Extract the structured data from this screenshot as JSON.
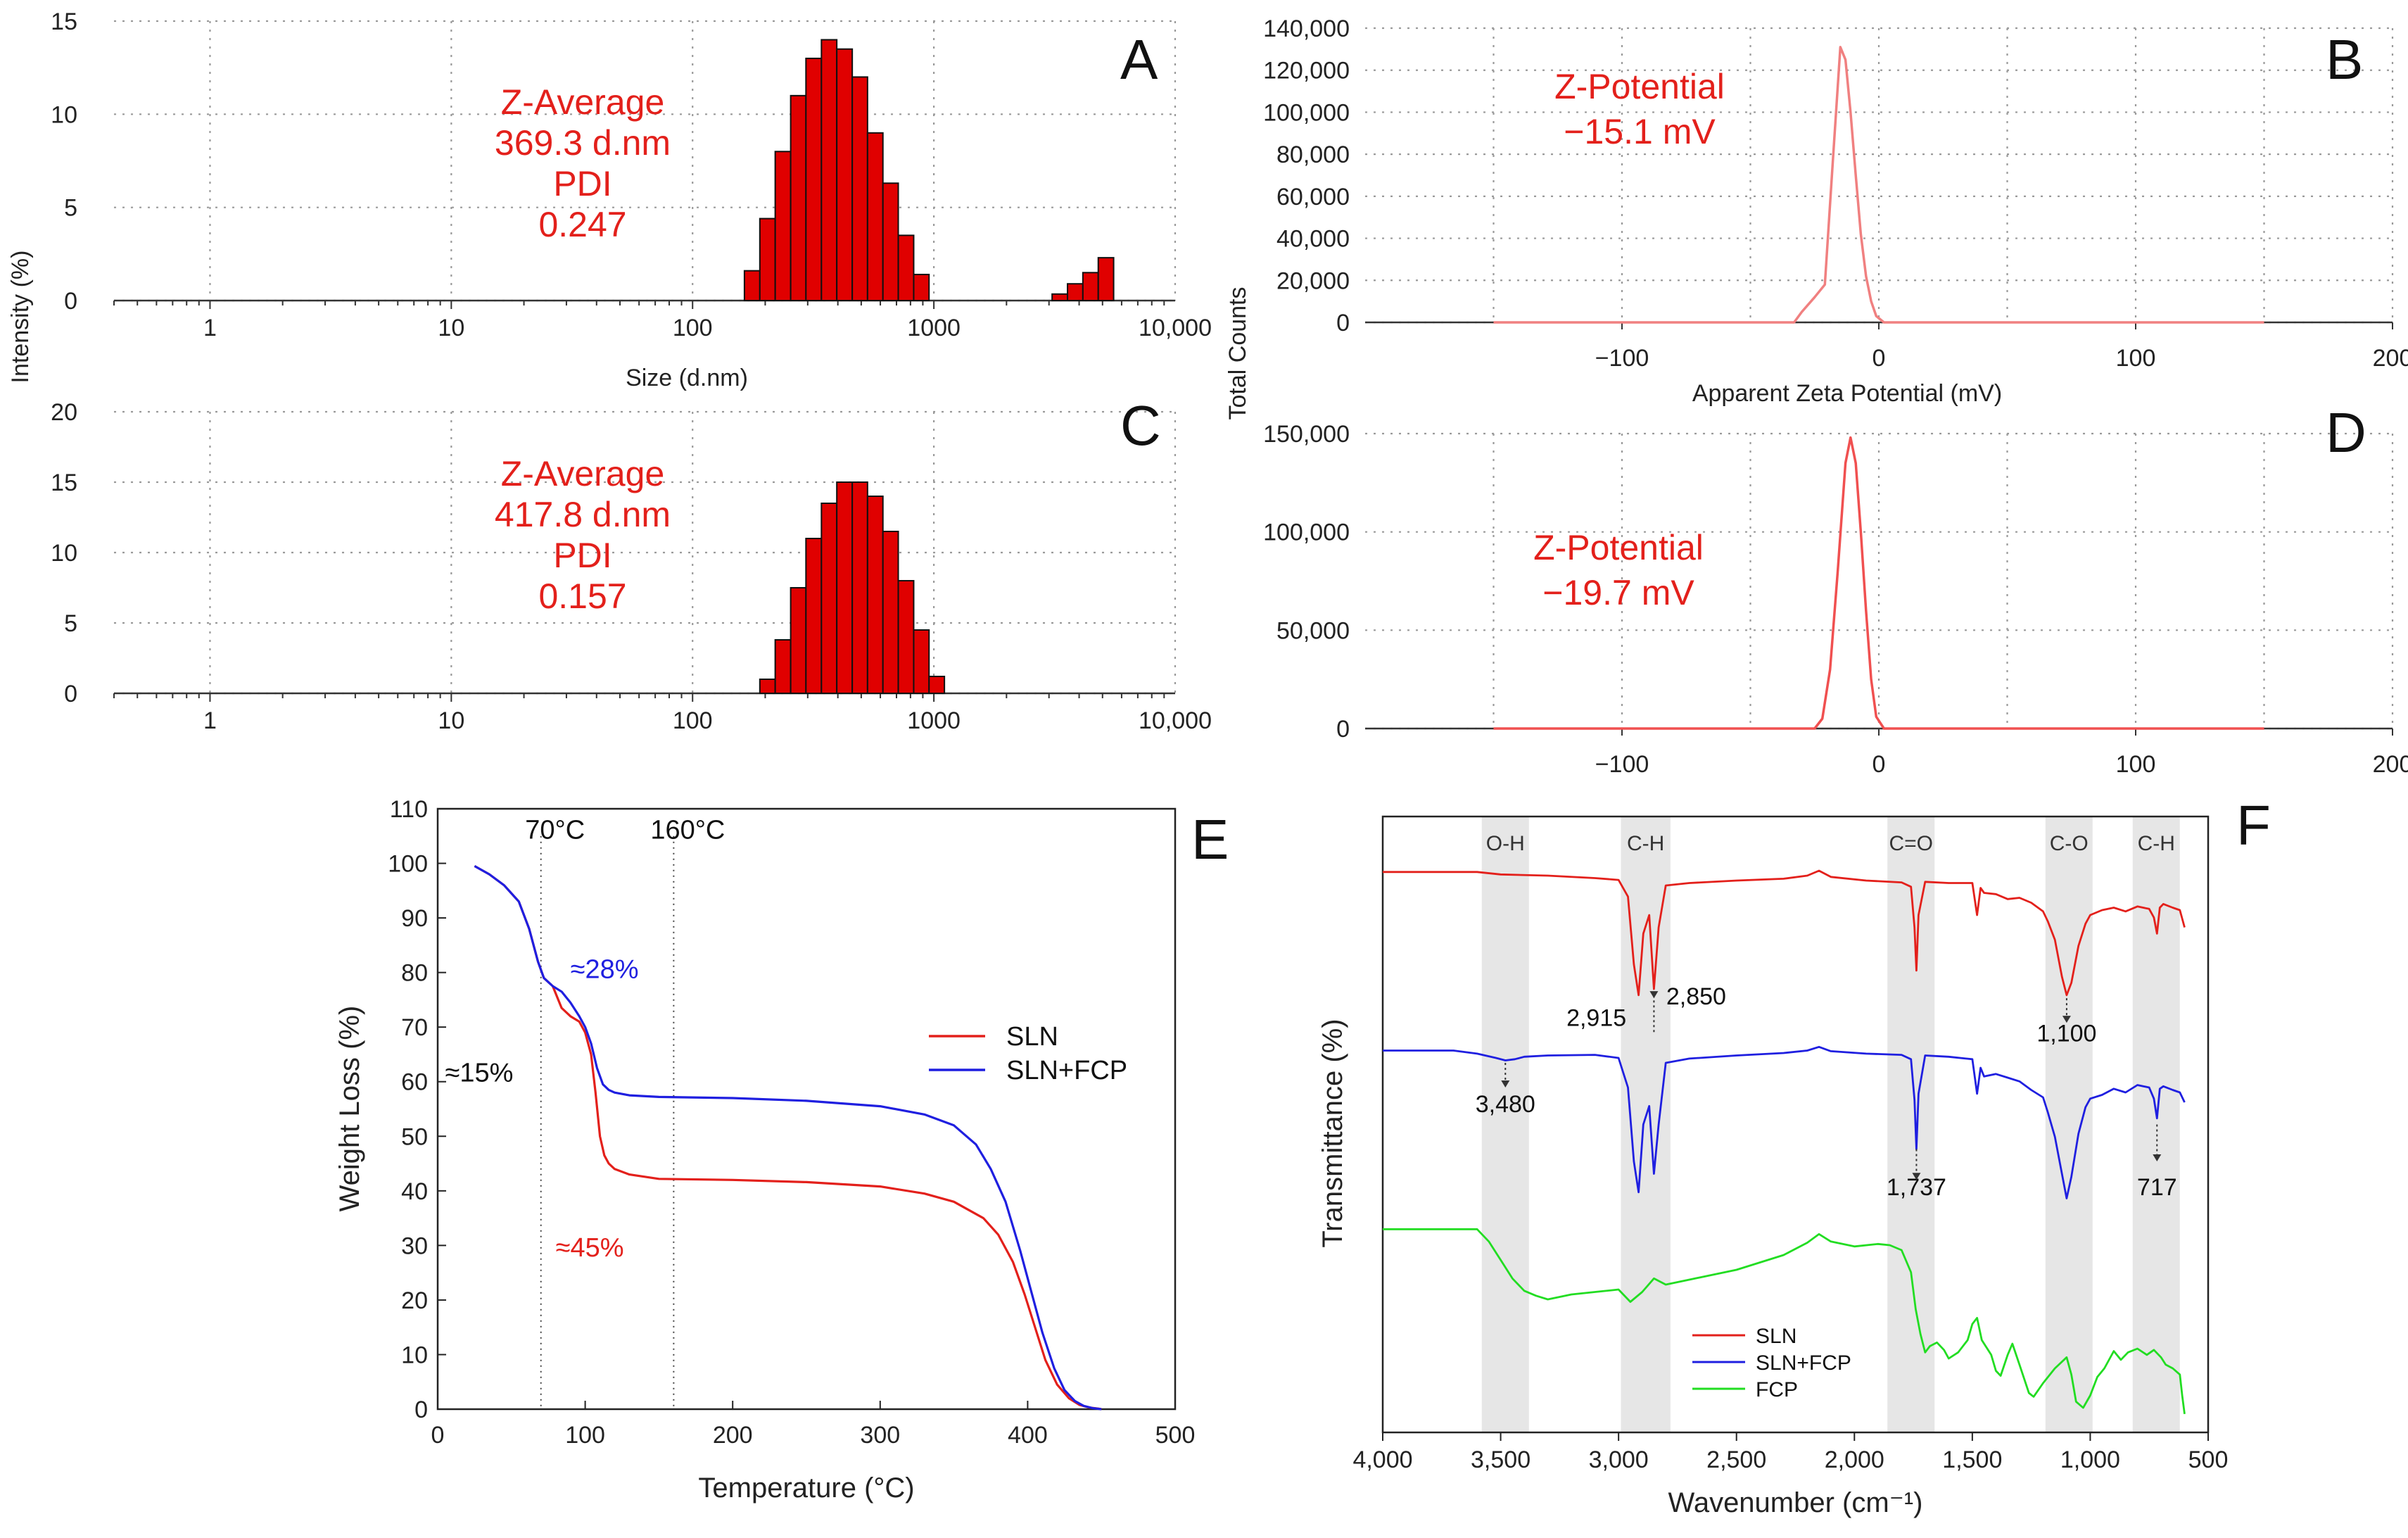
{
  "chart_data": [
    {
      "id": "A",
      "type": "bar",
      "panel_letter": "A",
      "xlabel": "Size (d.nm)",
      "ylabel": "Intensity (%)",
      "xscale": "log",
      "xlim": [
        0.4,
        10000
      ],
      "ylim": [
        0,
        15
      ],
      "xticks": [
        1,
        10,
        100,
        1000,
        10000
      ],
      "xtick_labels": [
        "1",
        "10",
        "100",
        "1000",
        "10,000"
      ],
      "yticks": [
        0,
        5,
        10,
        15
      ],
      "ytick_labels": [
        "0",
        "5",
        "10",
        "15"
      ],
      "grid": true,
      "bar_color": "#e00000",
      "annotation": [
        "Z-Average",
        "369.3 d.nm",
        "PDI",
        "0.247"
      ],
      "bins": [
        {
          "x": 164,
          "x_end": 190,
          "y": 1.6
        },
        {
          "x": 190,
          "x_end": 220,
          "y": 4.4
        },
        {
          "x": 220,
          "x_end": 255,
          "y": 8.0
        },
        {
          "x": 255,
          "x_end": 295,
          "y": 11.0
        },
        {
          "x": 295,
          "x_end": 342,
          "y": 13.0
        },
        {
          "x": 342,
          "x_end": 396,
          "y": 14.0
        },
        {
          "x": 396,
          "x_end": 459,
          "y": 13.5
        },
        {
          "x": 459,
          "x_end": 531,
          "y": 12.0
        },
        {
          "x": 531,
          "x_end": 615,
          "y": 9.0
        },
        {
          "x": 615,
          "x_end": 712,
          "y": 6.3
        },
        {
          "x": 712,
          "x_end": 825,
          "y": 3.5
        },
        {
          "x": 825,
          "x_end": 955,
          "y": 1.4
        },
        {
          "x": 3091,
          "x_end": 3580,
          "y": 0.35
        },
        {
          "x": 3580,
          "x_end": 4145,
          "y": 0.9
        },
        {
          "x": 4145,
          "x_end": 4801,
          "y": 1.5
        },
        {
          "x": 4801,
          "x_end": 5560,
          "y": 2.3
        }
      ]
    },
    {
      "id": "C",
      "type": "bar",
      "panel_letter": "C",
      "xlabel": "",
      "ylabel": "Intensity (%)",
      "xscale": "log",
      "xlim": [
        0.4,
        10000
      ],
      "ylim": [
        0,
        20
      ],
      "xticks": [
        1,
        10,
        100,
        1000,
        10000
      ],
      "xtick_labels": [
        "1",
        "10",
        "100",
        "1000",
        "10,000"
      ],
      "yticks": [
        0,
        5,
        10,
        15,
        20
      ],
      "ytick_labels": [
        "0",
        "5",
        "10",
        "15",
        "20"
      ],
      "grid": true,
      "bar_color": "#e00000",
      "annotation": [
        "Z-Average",
        "417.8 d.nm",
        "PDI",
        "0.157"
      ],
      "bins": [
        {
          "x": 190,
          "x_end": 220,
          "y": 1.0
        },
        {
          "x": 220,
          "x_end": 255,
          "y": 3.8
        },
        {
          "x": 255,
          "x_end": 295,
          "y": 7.5
        },
        {
          "x": 295,
          "x_end": 342,
          "y": 11.0
        },
        {
          "x": 342,
          "x_end": 396,
          "y": 13.5
        },
        {
          "x": 396,
          "x_end": 459,
          "y": 15.0
        },
        {
          "x": 459,
          "x_end": 531,
          "y": 15.0
        },
        {
          "x": 531,
          "x_end": 615,
          "y": 14.0
        },
        {
          "x": 615,
          "x_end": 712,
          "y": 11.5
        },
        {
          "x": 712,
          "x_end": 825,
          "y": 8.0
        },
        {
          "x": 825,
          "x_end": 955,
          "y": 4.5
        },
        {
          "x": 955,
          "x_end": 1106,
          "y": 1.2
        }
      ]
    },
    {
      "id": "B",
      "type": "line",
      "panel_letter": "B",
      "xlabel": "Apparent Zeta Potential (mV)",
      "ylabel": "Total Counts",
      "xlim": [
        -200,
        200
      ],
      "ylim": [
        0,
        140000
      ],
      "xticks": [
        -100,
        0,
        100,
        200
      ],
      "xtick_labels": [
        "−100",
        "0",
        "100",
        "200"
      ],
      "yticks": [
        0,
        20000,
        40000,
        60000,
        80000,
        100000,
        120000,
        140000
      ],
      "ytick_labels": [
        "0",
        "20,000",
        "40,000",
        "60,000",
        "80,000",
        "100,000",
        "120,000",
        "140,000"
      ],
      "grid": true,
      "line_color": "#f08080",
      "annotation": [
        "Z-Potential",
        "−15.1 mV"
      ],
      "x": [
        -150,
        -33,
        -30,
        -25,
        -21,
        -18,
        -15,
        -13,
        -11,
        -9,
        -7,
        -5,
        -3,
        -1,
        2,
        150
      ],
      "y": [
        0,
        0,
        5000,
        12000,
        18000,
        75000,
        131000,
        125000,
        100000,
        70000,
        42000,
        22000,
        10000,
        3000,
        0,
        0
      ]
    },
    {
      "id": "D",
      "type": "line",
      "panel_letter": "D",
      "xlabel": "",
      "ylabel": "Total Counts",
      "xlim": [
        -200,
        200
      ],
      "ylim": [
        0,
        150000
      ],
      "xticks": [
        -100,
        0,
        100,
        200
      ],
      "xtick_labels": [
        "−100",
        "0",
        "100",
        "200"
      ],
      "yticks": [
        0,
        50000,
        100000,
        150000
      ],
      "ytick_labels": [
        "0",
        "50,000",
        "100,000",
        "150,000"
      ],
      "grid": true,
      "line_color": "#f05050",
      "annotation": [
        "Z-Potential",
        "−19.7 mV"
      ],
      "x": [
        -150,
        -25,
        -22,
        -19,
        -16,
        -13,
        -11,
        -9,
        -7,
        -5,
        -3,
        -1,
        2,
        150
      ],
      "y": [
        0,
        0,
        5000,
        30000,
        80000,
        135000,
        148000,
        135000,
        100000,
        60000,
        25000,
        6000,
        0,
        0
      ]
    },
    {
      "id": "E",
      "type": "line",
      "panel_letter": "E",
      "xlabel": "Temperature (°C)",
      "ylabel": "Weight Loss (%)",
      "xlim": [
        0,
        500
      ],
      "ylim": [
        0,
        110
      ],
      "xticks": [
        0,
        100,
        200,
        300,
        400,
        500
      ],
      "xtick_labels": [
        "0",
        "100",
        "200",
        "300",
        "400",
        "500"
      ],
      "yticks": [
        0,
        10,
        20,
        30,
        40,
        50,
        60,
        70,
        80,
        90,
        100,
        110
      ],
      "ytick_labels": [
        "0",
        "10",
        "20",
        "30",
        "40",
        "50",
        "60",
        "70",
        "80",
        "90",
        "100",
        "110"
      ],
      "vlines": [
        {
          "x": 70,
          "label": "70°C"
        },
        {
          "x": 160,
          "label": "160°C"
        }
      ],
      "annotations": [
        {
          "text": "≈28%",
          "x": 90,
          "y": 79,
          "color": "#1f1fe0"
        },
        {
          "text": "≈15%",
          "x": 5,
          "y": 60,
          "color": "#111111"
        },
        {
          "text": "≈45%",
          "x": 80,
          "y": 28,
          "color": "#e3201b"
        }
      ],
      "legend_position": "right",
      "series": [
        {
          "name": "SLN",
          "color": "#e3201b",
          "x": [
            25,
            35,
            45,
            55,
            62,
            68,
            72,
            78,
            84,
            90,
            96,
            100,
            104,
            107,
            110,
            113,
            116,
            120,
            130,
            150,
            200,
            250,
            300,
            330,
            350,
            370,
            380,
            390,
            398,
            405,
            412,
            420,
            428,
            435,
            442,
            448,
            450
          ],
          "y": [
            99.5,
            98,
            96,
            93,
            88,
            82,
            79,
            77.5,
            73.5,
            72,
            71,
            69,
            65,
            58,
            50,
            46.5,
            45,
            44,
            43,
            42.2,
            42,
            41.6,
            40.8,
            39.5,
            38,
            35,
            32,
            27,
            21,
            15,
            9,
            4.5,
            2,
            0.8,
            0.3,
            0.1,
            0
          ]
        },
        {
          "name": "SLN+FCP",
          "color": "#1f1fe0",
          "x": [
            25,
            35,
            45,
            55,
            62,
            68,
            72,
            78,
            84,
            90,
            96,
            100,
            104,
            108,
            112,
            116,
            120,
            130,
            150,
            200,
            250,
            300,
            330,
            350,
            365,
            375,
            385,
            395,
            403,
            410,
            418,
            425,
            432,
            438,
            444,
            450
          ],
          "y": [
            99.5,
            98,
            96,
            93,
            88,
            82,
            79,
            77.5,
            76.5,
            74.5,
            72,
            70,
            67,
            62.5,
            59.5,
            58.5,
            58,
            57.5,
            57.2,
            57,
            56.5,
            55.5,
            54,
            52,
            48.5,
            44,
            38,
            29,
            21,
            14,
            7.5,
            3.5,
            1.5,
            0.6,
            0.2,
            0
          ]
        }
      ]
    },
    {
      "id": "F",
      "type": "line",
      "panel_letter": "F",
      "xlabel": "Wavenumber (cm⁻¹)",
      "ylabel": "Transmittance (%)",
      "xlim": [
        4000,
        500
      ],
      "ylim": [
        0,
        100
      ],
      "xticks": [
        4000,
        3500,
        3000,
        2500,
        2000,
        1500,
        1000,
        500
      ],
      "xtick_labels": [
        "4,000",
        "3,500",
        "3,000",
        "2,500",
        "2,000",
        "1,500",
        "1,000",
        "500"
      ],
      "bands": [
        {
          "from": 3580,
          "to": 3380,
          "label": "O-H"
        },
        {
          "from": 2990,
          "to": 2780,
          "label": "C-H"
        },
        {
          "from": 1860,
          "to": 1660,
          "label": "C=O"
        },
        {
          "from": 1190,
          "to": 990,
          "label": "C-O"
        },
        {
          "from": 820,
          "to": 620,
          "label": "C-H"
        }
      ],
      "peak_labels": [
        {
          "text": "2,915",
          "x": 2915,
          "y": 67
        },
        {
          "text": "2,850",
          "x": 2850,
          "y": 70.5
        },
        {
          "text": "1,100",
          "x": 1100,
          "y": 66
        },
        {
          "text": "3,480",
          "x": 3480,
          "y": 52
        },
        {
          "text": "1,737",
          "x": 1737,
          "y": 40
        },
        {
          "text": "717",
          "x": 717,
          "y": 40
        }
      ],
      "legend_position": "bottom-left",
      "series": [
        {
          "name": "SLN",
          "color": "#e3201b",
          "x": [
            4000,
            3700,
            3600,
            3500,
            3300,
            3100,
            3000,
            2960,
            2935,
            2915,
            2895,
            2870,
            2850,
            2830,
            2800,
            2700,
            2500,
            2300,
            2200,
            2150,
            2100,
            1950,
            1800,
            1760,
            1745,
            1737,
            1728,
            1700,
            1600,
            1500,
            1480,
            1465,
            1450,
            1400,
            1350,
            1300,
            1250,
            1200,
            1180,
            1150,
            1120,
            1100,
            1080,
            1050,
            1020,
            1000,
            950,
            900,
            850,
            800,
            750,
            730,
            717,
            705,
            690,
            650,
            620,
            600
          ],
          "y": [
            91,
            91,
            91,
            90.6,
            90.4,
            90,
            89.7,
            87,
            76,
            71,
            81,
            84,
            72,
            82,
            88.8,
            89.2,
            89.6,
            89.9,
            90.4,
            91.2,
            90.2,
            89.6,
            89.3,
            88.6,
            82,
            75,
            84,
            89.4,
            89.2,
            89.2,
            84,
            88.4,
            87.6,
            87.4,
            86.6,
            86.8,
            86,
            84.6,
            83,
            80,
            74,
            71,
            73,
            79,
            82.6,
            84,
            84.8,
            85.2,
            84.6,
            85.4,
            85,
            83.6,
            81,
            85.2,
            85.8,
            85.2,
            84.8,
            82
          ]
        },
        {
          "name": "SLN+FCP",
          "color": "#1f1fe0",
          "x": [
            4000,
            3700,
            3600,
            3520,
            3480,
            3440,
            3400,
            3300,
            3100,
            3000,
            2960,
            2935,
            2915,
            2895,
            2870,
            2850,
            2830,
            2800,
            2700,
            2500,
            2300,
            2200,
            2150,
            2100,
            1950,
            1800,
            1760,
            1745,
            1737,
            1728,
            1700,
            1600,
            1500,
            1480,
            1465,
            1450,
            1400,
            1350,
            1300,
            1250,
            1200,
            1180,
            1150,
            1120,
            1100,
            1080,
            1050,
            1020,
            1000,
            950,
            900,
            850,
            800,
            750,
            730,
            717,
            705,
            690,
            650,
            620,
            600
          ],
          "y": [
            62,
            62,
            61.5,
            60.8,
            60.4,
            60.6,
            61,
            61.2,
            61.3,
            60.8,
            56,
            44,
            39,
            50,
            53,
            42,
            50,
            60,
            60.7,
            61.2,
            61.6,
            62,
            62.6,
            61.9,
            61.5,
            61.3,
            60.6,
            54,
            46,
            55,
            61.2,
            61,
            60.6,
            55,
            59.2,
            57.8,
            58.2,
            57.6,
            57,
            55.6,
            54.4,
            52,
            48,
            42,
            38,
            41.5,
            48.5,
            52.8,
            54.2,
            54.8,
            55.8,
            55.2,
            56.4,
            56,
            54.2,
            51,
            55.8,
            56.2,
            55.6,
            55.2,
            53.6
          ]
        },
        {
          "name": "FCP",
          "color": "#22dd22",
          "x": [
            4000,
            3800,
            3700,
            3600,
            3550,
            3500,
            3450,
            3400,
            3350,
            3300,
            3250,
            3200,
            3100,
            3000,
            2950,
            2900,
            2850,
            2800,
            2700,
            2600,
            2500,
            2400,
            2300,
            2200,
            2150,
            2100,
            2000,
            1900,
            1850,
            1800,
            1760,
            1740,
            1720,
            1700,
            1680,
            1650,
            1620,
            1600,
            1560,
            1520,
            1500,
            1480,
            1460,
            1420,
            1400,
            1380,
            1350,
            1330,
            1300,
            1260,
            1240,
            1200,
            1150,
            1100,
            1080,
            1060,
            1030,
            1000,
            970,
            940,
            900,
            870,
            840,
            800,
            760,
            730,
            700,
            680,
            650,
            620,
            610,
            600
          ],
          "y": [
            33,
            33,
            33,
            33,
            31,
            28,
            25,
            23,
            22.2,
            21.6,
            22,
            22.4,
            22.8,
            23.2,
            21.2,
            22.8,
            25,
            24,
            24.8,
            25.6,
            26.4,
            27.6,
            28.8,
            30.8,
            32.2,
            31,
            30.2,
            30.6,
            30.4,
            29.6,
            26,
            20,
            16,
            13,
            14,
            14.6,
            13.4,
            12,
            13,
            15,
            17.6,
            18.6,
            15,
            12.6,
            10,
            9.2,
            12.6,
            14.4,
            11,
            6.4,
            5.8,
            8,
            10.4,
            12.2,
            9.4,
            5,
            4,
            6,
            9,
            10.4,
            13.2,
            11.8,
            13,
            13.6,
            12.6,
            13.4,
            12.2,
            11,
            10.4,
            9.4,
            6,
            3
          ]
        }
      ]
    }
  ]
}
